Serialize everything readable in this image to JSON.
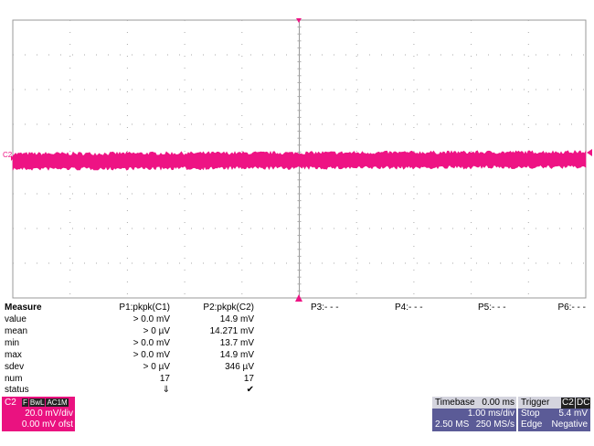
{
  "screen": {
    "channel_marker": "C2",
    "measure": {
      "headers": [
        "Measure",
        "P1:pkpk(C1)",
        "P2:pkpk(C2)",
        "P3:- - -",
        "P4:- - -",
        "P5:- - -",
        "P6:- - -"
      ],
      "rows": [
        [
          "value",
          "> 0.0 mV",
          "14.9 mV"
        ],
        [
          "mean",
          "> 0 µV",
          "14.271 mV"
        ],
        [
          "min",
          "> 0.0 mV",
          "13.7 mV"
        ],
        [
          "max",
          "> 0.0 mV",
          "14.9 mV"
        ],
        [
          "sdev",
          "> 0 µV",
          "346 µV"
        ],
        [
          "num",
          "17",
          "17"
        ],
        [
          "status",
          "⇓",
          "✔"
        ]
      ]
    },
    "channel_box": {
      "name": "C2",
      "badges": [
        "F",
        "BwL",
        "AC1M"
      ],
      "scale": "20.0 mV/div",
      "offset": "0.00 mV ofst"
    },
    "timebase_box": {
      "title": "Timebase",
      "delay": "0.00 ms",
      "scale": "1.00 ms/div",
      "samples": "2.50 MS",
      "rate": "250 MS/s"
    },
    "trigger_box": {
      "title": "Trigger",
      "source": "C2",
      "coupling": "DC",
      "mode": "Stop",
      "level": "5.4 mV",
      "type": "Edge",
      "slope": "Negative"
    }
  }
}
